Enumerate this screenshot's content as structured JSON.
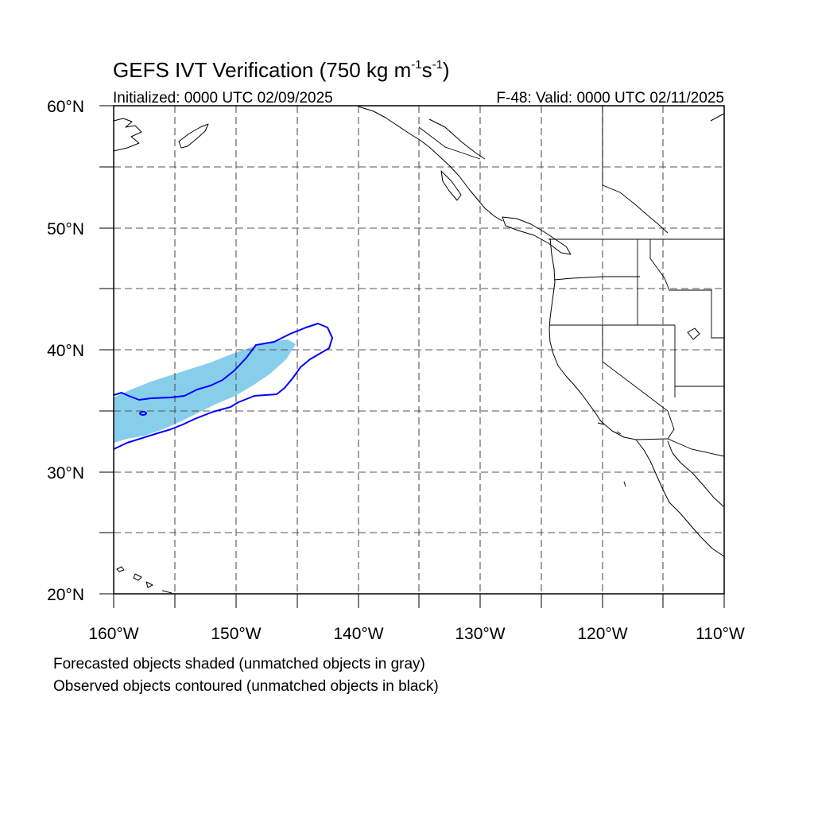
{
  "title": {
    "prefix": "GEFS IVT Verification (750 kg m",
    "exp1": "-1",
    "mid": "s",
    "exp2": "-1",
    "suffix": ")"
  },
  "initialized": "Initialized: 0000 UTC 02/09/2025",
  "valid": "F-48: Valid: 0000 UTC 02/11/2025",
  "lat_labels": [
    "60°N",
    "50°N",
    "40°N",
    "30°N",
    "20°N"
  ],
  "lon_labels": [
    "160°W",
    "150°W",
    "140°W",
    "130°W",
    "120°W",
    "110°W"
  ],
  "map": {
    "lon_range": [
      -160,
      -110
    ],
    "lat_range": [
      20,
      60
    ],
    "grid_spacing_deg": 5,
    "gridlines": true,
    "colors": {
      "forecast_fill": "#87ceeb",
      "observed_contour": "#0000ff",
      "coastline": "#000000"
    }
  },
  "captions": {
    "forecast": "Forecasted objects shaded (unmatched objects in gray)",
    "observed": "Observed objects contoured (unmatched objects in black)"
  }
}
